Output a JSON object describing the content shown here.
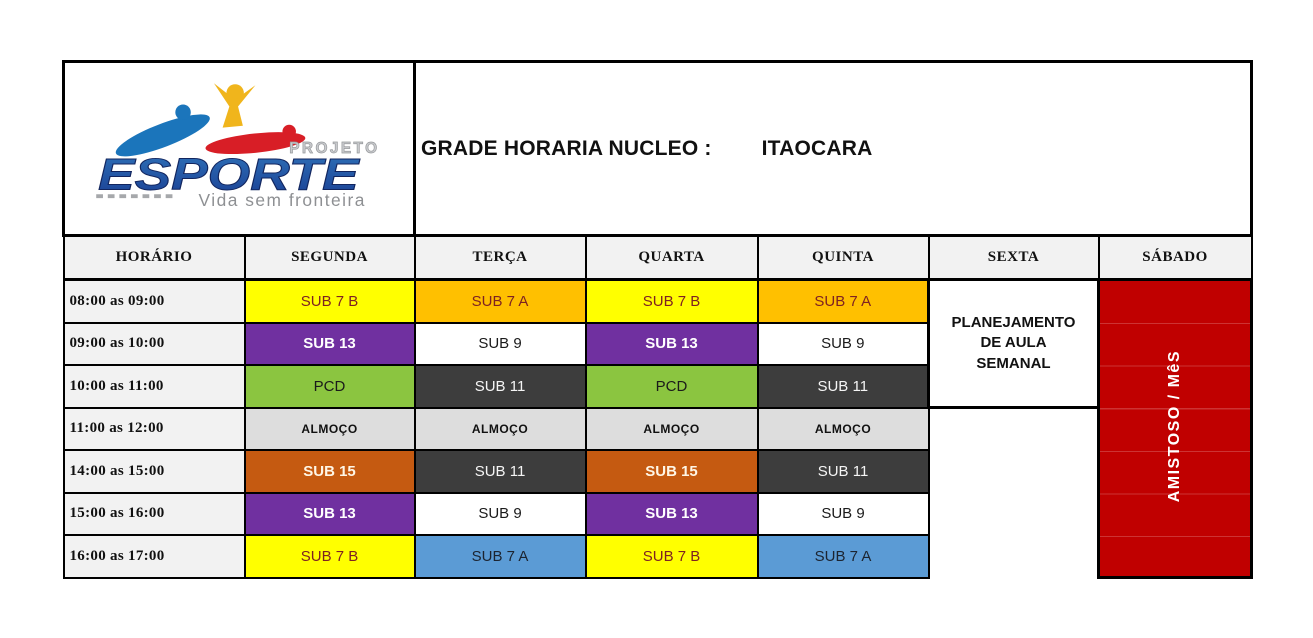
{
  "logo": {
    "projeto": "PROJETO",
    "wordmark": "ESPORTE",
    "tagline": "Vida sem fronteira",
    "colors": {
      "blue": "#1B75BB",
      "yellow": "#F0B51C",
      "red": "#D81E26",
      "gray": "#9B9D9F"
    }
  },
  "title": {
    "prefix": "GRADE HORARIA NUCLEO :",
    "value": "ITAOCARA"
  },
  "schedule": {
    "columns": [
      "HORÁRIO",
      "SEGUNDA",
      "TERÇA",
      "QUARTA",
      "QUINTA",
      "SEXTA",
      "SÁBADO"
    ],
    "rows": [
      {
        "time": "08:00 as 09:00",
        "cells": [
          {
            "text": "SUB 7 B",
            "style": "yellow"
          },
          {
            "text": "SUB 7 A",
            "style": "orange"
          },
          {
            "text": "SUB 7 B",
            "style": "yellow"
          },
          {
            "text": "SUB 7 A",
            "style": "orange"
          }
        ]
      },
      {
        "time": "09:00 as 10:00",
        "cells": [
          {
            "text": "SUB 13",
            "style": "purple"
          },
          {
            "text": "SUB 9",
            "style": "plain"
          },
          {
            "text": "SUB 13",
            "style": "purple"
          },
          {
            "text": "SUB 9",
            "style": "plain"
          }
        ]
      },
      {
        "time": "10:00 as 11:00",
        "cells": [
          {
            "text": "PCD",
            "style": "green"
          },
          {
            "text": "SUB 11",
            "style": "dark"
          },
          {
            "text": "PCD",
            "style": "green"
          },
          {
            "text": "SUB 11",
            "style": "dark"
          }
        ]
      },
      {
        "time": "11:00 as 12:00",
        "cells": [
          {
            "text": "ALMOÇO",
            "style": "lunch"
          },
          {
            "text": "ALMOÇO",
            "style": "lunch"
          },
          {
            "text": "ALMOÇO",
            "style": "lunch"
          },
          {
            "text": "ALMOÇO",
            "style": "lunch"
          }
        ]
      },
      {
        "time": "14:00 as 15:00",
        "cells": [
          {
            "text": "SUB 15",
            "style": "brown"
          },
          {
            "text": "SUB 11",
            "style": "dark"
          },
          {
            "text": "SUB 15",
            "style": "brown"
          },
          {
            "text": "SUB 11",
            "style": "dark"
          }
        ]
      },
      {
        "time": "15:00 as 16:00",
        "cells": [
          {
            "text": "SUB 13",
            "style": "purple"
          },
          {
            "text": "SUB 9",
            "style": "plain"
          },
          {
            "text": "SUB 13",
            "style": "purple"
          },
          {
            "text": "SUB 9",
            "style": "plain"
          }
        ]
      },
      {
        "time": "16:00 as 17:00",
        "cells": [
          {
            "text": "SUB 7 B",
            "style": "yellow"
          },
          {
            "text": "SUB 7 A",
            "style": "blue"
          },
          {
            "text": "SUB 7 B",
            "style": "yellow"
          },
          {
            "text": "SUB 7 A",
            "style": "blue"
          }
        ]
      }
    ],
    "sexta_note": {
      "text": "PLANEJAMENTO DE AULA SEMANAL",
      "rowspan": 3
    },
    "sabado_note": {
      "text": "AMISTOSO / MêS",
      "rowspan": 7
    },
    "cell_styles": {
      "yellow": {
        "bg": "#FFFF00",
        "fg": "#7E2222",
        "bold": false
      },
      "orange": {
        "bg": "#FFC000",
        "fg": "#7E2222",
        "bold": false
      },
      "purple": {
        "bg": "#7030A0",
        "fg": "#FFFFFF",
        "bold": true
      },
      "plain": {
        "bg": "#FFFFFF",
        "fg": "#1A1A1A",
        "bold": false
      },
      "green": {
        "bg": "#8BC540",
        "fg": "#1A1A1A",
        "bold": false
      },
      "dark": {
        "bg": "#3D3D3D",
        "fg": "#F5F5F5",
        "bold": false
      },
      "lunch": {
        "bg": "#DDDDDD",
        "fg": "#111111",
        "bold": true,
        "small": true
      },
      "brown": {
        "bg": "#C55A11",
        "fg": "#FFF6E6",
        "bold": true
      },
      "blue": {
        "bg": "#5B9BD5",
        "fg": "#1C2430",
        "bold": false
      }
    },
    "accent_colors": {
      "saturday_red": "#C00000",
      "header_gray": "#F2F2F2",
      "grid_black": "#000000"
    }
  }
}
